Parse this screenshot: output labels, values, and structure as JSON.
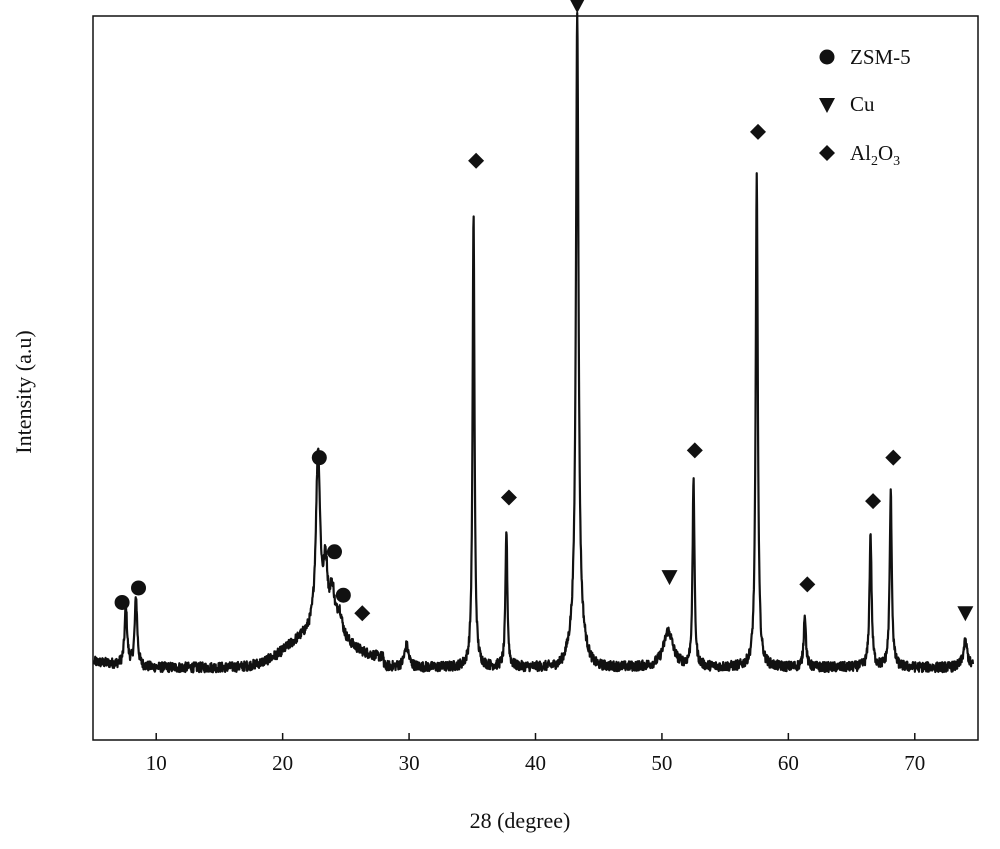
{
  "chart_data": {
    "type": "line",
    "title": "",
    "xlabel": "28 (degree)",
    "ylabel": "Intensity (a.u)",
    "xlim": [
      5,
      75
    ],
    "ylim": [
      0,
      100
    ],
    "x_ticks": [
      10,
      20,
      30,
      40,
      50,
      60,
      70
    ],
    "y_ticks_shown": false,
    "grid": false,
    "legend_position": "top-right",
    "line_color": "#111111",
    "baseline": 10,
    "peaks": [
      {
        "x": 7.6,
        "height": 8,
        "width": 0.12
      },
      {
        "x": 8.4,
        "height": 9.5,
        "width": 0.12
      },
      {
        "x": 22.8,
        "height": 25,
        "width": 0.2
      },
      {
        "x": 23.4,
        "height": 9,
        "width": 0.2
      },
      {
        "x": 23.9,
        "height": 6,
        "width": 0.2
      },
      {
        "x": 24.5,
        "height": 3,
        "width": 0.25
      },
      {
        "x": 29.8,
        "height": 3,
        "width": 0.2
      },
      {
        "x": 35.1,
        "height": 63,
        "width": 0.09
      },
      {
        "x": 37.7,
        "height": 19,
        "width": 0.09
      },
      {
        "x": 43.3,
        "height": 87,
        "width": 0.12
      },
      {
        "x": 50.5,
        "height": 5,
        "width": 0.45
      },
      {
        "x": 52.5,
        "height": 26,
        "width": 0.09
      },
      {
        "x": 57.5,
        "height": 68,
        "width": 0.1
      },
      {
        "x": 61.3,
        "height": 7.5,
        "width": 0.1
      },
      {
        "x": 66.5,
        "height": 18.5,
        "width": 0.1
      },
      {
        "x": 68.1,
        "height": 24,
        "width": 0.1
      },
      {
        "x": 74.0,
        "height": 3.5,
        "width": 0.2
      }
    ],
    "humps": [
      {
        "x": 22.5,
        "height": 4.5,
        "width": 3.0
      },
      {
        "x": 43.3,
        "height": 4,
        "width": 0.8
      }
    ],
    "markers": [
      {
        "type": "circle",
        "x": 7.3,
        "y": 19
      },
      {
        "type": "circle",
        "x": 8.6,
        "y": 21
      },
      {
        "type": "circle",
        "x": 22.9,
        "y": 39
      },
      {
        "type": "circle",
        "x": 24.1,
        "y": 26
      },
      {
        "type": "circle",
        "x": 24.8,
        "y": 20
      },
      {
        "type": "diamond",
        "x": 26.3,
        "y": 17.5
      },
      {
        "type": "diamond",
        "x": 35.3,
        "y": 80
      },
      {
        "type": "diamond",
        "x": 37.9,
        "y": 33.5
      },
      {
        "type": "triangle",
        "x": 43.3,
        "y": 101.5
      },
      {
        "type": "triangle",
        "x": 50.6,
        "y": 22.5
      },
      {
        "type": "diamond",
        "x": 52.6,
        "y": 40
      },
      {
        "type": "diamond",
        "x": 57.6,
        "y": 84
      },
      {
        "type": "diamond",
        "x": 61.5,
        "y": 21.5
      },
      {
        "type": "diamond",
        "x": 66.7,
        "y": 33
      },
      {
        "type": "diamond",
        "x": 68.3,
        "y": 39
      },
      {
        "type": "triangle",
        "x": 74.0,
        "y": 17.5
      }
    ],
    "legend": [
      {
        "symbol": "circle",
        "label": "ZSM-5"
      },
      {
        "symbol": "triangle",
        "label": "Cu"
      },
      {
        "symbol": "diamond",
        "label": "Al",
        "sub1": "2",
        "mid": "O",
        "sub2": "3"
      }
    ]
  }
}
